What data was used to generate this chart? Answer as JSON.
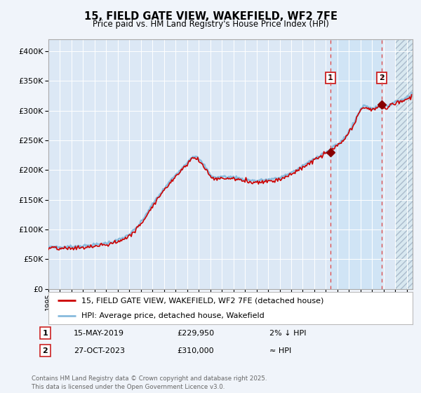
{
  "title_line1": "15, FIELD GATE VIEW, WAKEFIELD, WF2 7FE",
  "title_line2": "Price paid vs. HM Land Registry's House Price Index (HPI)",
  "bg_color": "#f0f4fa",
  "plot_bg_color": "#dce8f5",
  "highlight_bg_color": "#ddeaf8",
  "grid_color": "#c8d8e8",
  "red_line_color": "#cc0000",
  "blue_line_color": "#88bbdd",
  "marker1_x": 2019.37,
  "marker1_y": 229950,
  "marker2_x": 2023.82,
  "marker2_y": 310000,
  "vline1_x": 2019.37,
  "vline2_x": 2023.82,
  "highlight_start": 2019.37,
  "highlight_end": 2023.82,
  "hatch_start": 2025.0,
  "xmin": 1995.0,
  "xmax": 2026.5,
  "ymin": 0,
  "ymax": 420000,
  "yticks": [
    0,
    50000,
    100000,
    150000,
    200000,
    250000,
    300000,
    350000,
    400000
  ],
  "xtick_years": [
    1995,
    1996,
    1997,
    1998,
    1999,
    2000,
    2001,
    2002,
    2003,
    2004,
    2005,
    2006,
    2007,
    2008,
    2009,
    2010,
    2011,
    2012,
    2013,
    2014,
    2015,
    2016,
    2017,
    2018,
    2019,
    2020,
    2021,
    2022,
    2023,
    2024,
    2025,
    2026
  ],
  "legend_line1": "15, FIELD GATE VIEW, WAKEFIELD, WF2 7FE (detached house)",
  "legend_line2": "HPI: Average price, detached house, Wakefield",
  "note1_num": "1",
  "note1_date": "15-MAY-2019",
  "note1_price": "£229,950",
  "note1_hpi": "2% ↓ HPI",
  "note2_num": "2",
  "note2_date": "27-OCT-2023",
  "note2_price": "£310,000",
  "note2_hpi": "≈ HPI",
  "footer": "Contains HM Land Registry data © Crown copyright and database right 2025.\nThis data is licensed under the Open Government Licence v3.0."
}
